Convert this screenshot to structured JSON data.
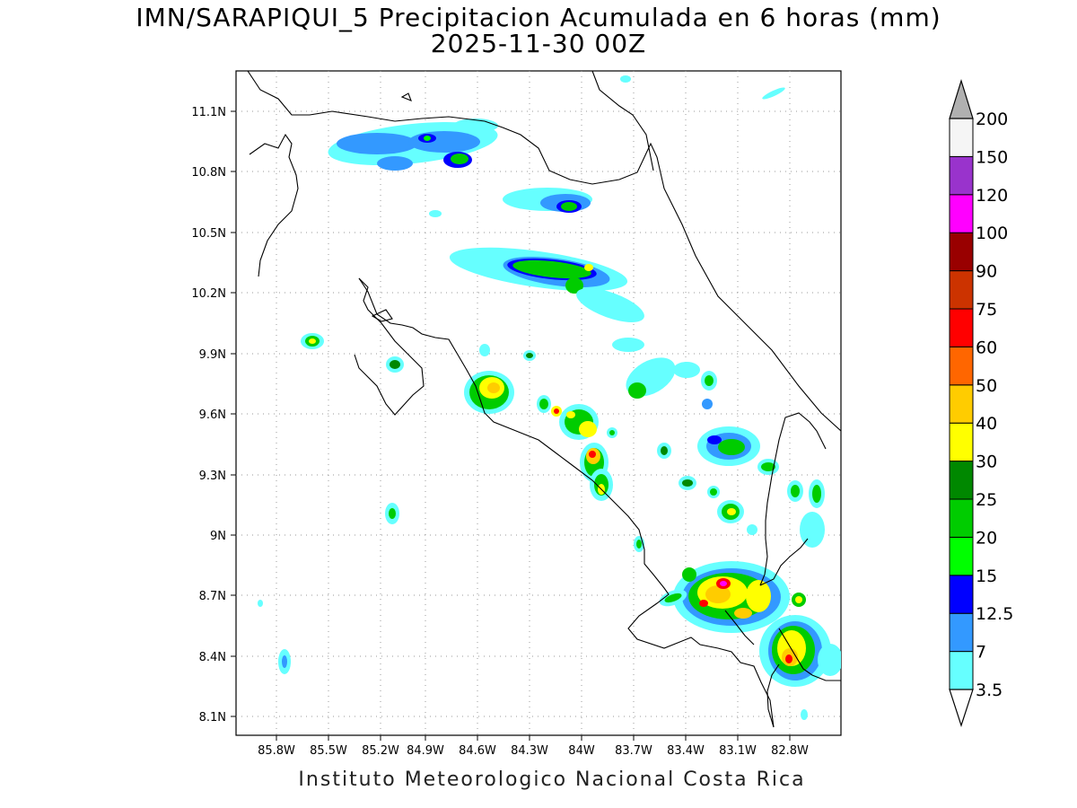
{
  "title": "IMN/SARAPIQUI_5 Precipitacion Acumulada en 6 horas (mm)",
  "subtitle": "2025-11-30 00Z",
  "footer": "Instituto Meteorologico Nacional Costa Rica",
  "lon_labels": [
    "85.8W",
    "85.5W",
    "85.2W",
    "84.9W",
    "84.6W",
    "84.3W",
    "84W",
    "83.7W",
    "83.4W",
    "83.1W",
    "82.8W"
  ],
  "lat_labels": [
    "11.1N",
    "10.8N",
    "10.5N",
    "10.2N",
    "9.9N",
    "9.6N",
    "9.3N",
    "9N",
    "8.7N",
    "8.4N",
    "8.1N"
  ],
  "colorbar": {
    "labels": [
      "3.5",
      "7",
      "12.5",
      "15",
      "20",
      "25",
      "30",
      "40",
      "50",
      "60",
      "75",
      "90",
      "100",
      "120",
      "150",
      "200"
    ],
    "colors": [
      "#66ffff",
      "#3399ff",
      "#0000ff",
      "#00ff00",
      "#00cc00",
      "#008800",
      "#ffff00",
      "#ffcc00",
      "#ff6600",
      "#ff0000",
      "#cc3300",
      "#990000",
      "#ff00ff",
      "#9933cc",
      "#f5f5f5",
      "#b0b0b0"
    ]
  }
}
